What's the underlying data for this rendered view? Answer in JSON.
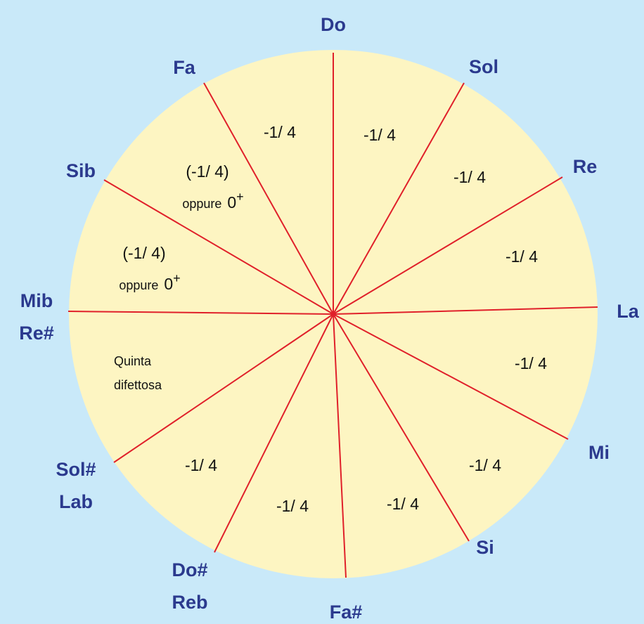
{
  "notes": [
    {
      "lines": [
        "Do"
      ]
    },
    {
      "lines": [
        "Sol"
      ]
    },
    {
      "lines": [
        "Re"
      ]
    },
    {
      "lines": [
        "La"
      ]
    },
    {
      "lines": [
        "Mi"
      ]
    },
    {
      "lines": [
        "Si"
      ]
    },
    {
      "lines": [
        "Fa#"
      ]
    },
    {
      "lines": [
        "Do#",
        "Reb"
      ]
    },
    {
      "lines": [
        "Sol#",
        "Lab"
      ]
    },
    {
      "lines": [
        "Mib",
        "Re#"
      ]
    },
    {
      "lines": [
        "Sib"
      ]
    },
    {
      "lines": [
        "Fa"
      ]
    }
  ],
  "segments": [
    {
      "lines": [
        "-1/ 4"
      ]
    },
    {
      "lines": [
        "-1/ 4"
      ]
    },
    {
      "lines": [
        "-1/ 4"
      ]
    },
    {
      "lines": [
        "-1/ 4"
      ]
    },
    {
      "lines": [
        "-1/ 4"
      ]
    },
    {
      "lines": [
        "-1/ 4"
      ]
    },
    {
      "lines": [
        "-1/ 4"
      ]
    },
    {
      "lines": [
        "-1/ 4"
      ]
    },
    {
      "lines": [
        "Quinta",
        "difettosa"
      ]
    },
    {
      "lines": [
        "(-1/ 4)"
      ],
      "note": {
        "text": "oppure",
        "value": "0",
        "sup": "+"
      }
    },
    {
      "lines": [
        "(-1/ 4)"
      ],
      "note": {
        "text": "oppure",
        "value": "0",
        "sup": "+"
      }
    },
    {
      "lines": [
        "-1/ 4"
      ]
    }
  ]
}
